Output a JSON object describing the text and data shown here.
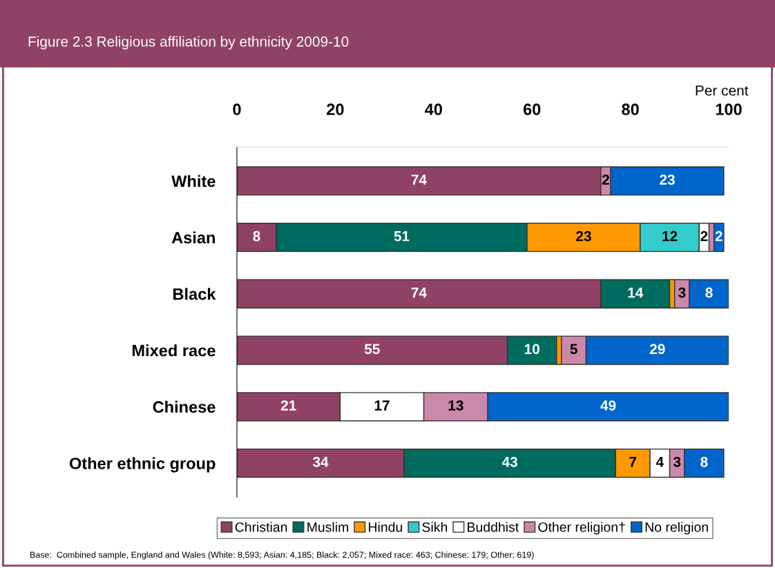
{
  "chart_data": {
    "type": "bar",
    "orientation": "horizontal",
    "stacked": true,
    "title": "Figure 2.3 Religious affiliation by ethnicity 2009-10",
    "xlabel": "Per cent",
    "categories": [
      "White",
      "Asian",
      "Black",
      "Mixed race",
      "Chinese",
      "Other ethnic group"
    ],
    "series": [
      {
        "name": "Christian",
        "color": "#8f4264",
        "values": [
          74,
          8,
          74,
          55,
          21,
          34
        ],
        "value_labels": [
          "74",
          "8",
          "74",
          "55",
          "21",
          "34"
        ]
      },
      {
        "name": "Muslim",
        "color": "#006b5f",
        "values": [
          null,
          51,
          14,
          10,
          null,
          43
        ],
        "value_labels": [
          null,
          "51",
          "14",
          "10",
          null,
          "43"
        ]
      },
      {
        "name": "Hindu",
        "color": "#ff9900",
        "values": [
          null,
          23,
          1,
          1,
          null,
          7
        ],
        "value_labels": [
          null,
          "23",
          null,
          null,
          null,
          "7"
        ]
      },
      {
        "name": "Sikh",
        "color": "#33cccc",
        "values": [
          null,
          12,
          null,
          null,
          null,
          null
        ],
        "value_labels": [
          null,
          "12",
          null,
          null,
          null,
          null
        ]
      },
      {
        "name": "Buddhist",
        "color": "#ffffff",
        "values": [
          null,
          2,
          null,
          null,
          17,
          4
        ],
        "value_labels": [
          null,
          "2",
          null,
          null,
          "17",
          "4"
        ]
      },
      {
        "name": "Other religion†",
        "color": "#cc88aa",
        "values": [
          2,
          1,
          3,
          5,
          13,
          3
        ],
        "value_labels": [
          "2",
          null,
          "3",
          "5",
          "13",
          "3"
        ]
      },
      {
        "name": "No religion",
        "color": "#0066cc",
        "values": [
          23,
          2,
          8,
          29,
          49,
          8
        ],
        "value_labels": [
          "23",
          "2",
          "8",
          "29",
          "49",
          "8"
        ]
      }
    ],
    "xlim": [
      0,
      100
    ],
    "xticks": [
      0,
      20,
      40,
      60,
      80,
      100
    ],
    "grid": false,
    "legend": "bottom",
    "annotations": [
      "Base:  Combined sample, England and Wales (White: 8,593; Asian: 4,185; Black: 2,057; Mixed race: 463; Chinese: 179; Other: 619)"
    ]
  }
}
